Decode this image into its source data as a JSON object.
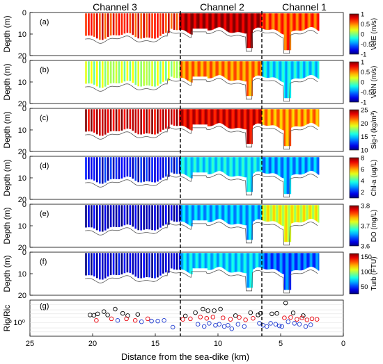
{
  "figure": {
    "channel_labels": [
      "Channel 3",
      "Channel 2",
      "Channel 1"
    ],
    "xlabel": "Distance from the sea-dike (km)",
    "x_ticks": [
      "25",
      "20",
      "15",
      "10",
      "5",
      "0"
    ]
  },
  "chart_data": [
    {
      "type": "heatmap",
      "panel": "(a)",
      "ylabel": "Depth (m)",
      "x_axis": "Distance from the sea-dike (km)",
      "xlim": [
        25,
        0
      ],
      "ylim": [
        20,
        0
      ],
      "y_ticks": [
        "0",
        "10",
        "20"
      ],
      "colorbar_label": "VelE (m/s)",
      "colorbar_ticks": [
        "1",
        "0.5",
        "0",
        "-0.5",
        "-1"
      ],
      "clim": [
        -1,
        1
      ],
      "colormap": "jet",
      "boundaries_km": [
        13,
        6.5
      ],
      "segments": [
        {
          "from_km": 20.6,
          "to_km": 13,
          "value": 0.7
        },
        {
          "from_km": 13,
          "to_km": 6.5,
          "value": 0.9
        },
        {
          "from_km": 6.5,
          "to_km": 2,
          "value": 0.6
        }
      ]
    },
    {
      "type": "heatmap",
      "panel": "(b)",
      "ylabel": "Depth (m)",
      "x_axis": "Distance from the sea-dike (km)",
      "xlim": [
        25,
        0
      ],
      "ylim": [
        20,
        0
      ],
      "y_ticks": [
        "0",
        "10",
        "20"
      ],
      "colorbar_label": "VelN (m/s)",
      "colorbar_ticks": [
        "1",
        "0.5",
        "0",
        "-0.5",
        "-1"
      ],
      "clim": [
        -1,
        1
      ],
      "colormap": "jet",
      "boundaries_km": [
        13,
        6.5
      ],
      "segments": [
        {
          "from_km": 20.6,
          "to_km": 13,
          "value": 0.1
        },
        {
          "from_km": 13,
          "to_km": 6.5,
          "value": 0.5
        },
        {
          "from_km": 6.5,
          "to_km": 2,
          "value": -0.3
        }
      ]
    },
    {
      "type": "heatmap",
      "panel": "(c)",
      "ylabel": "Depth (m)",
      "x_axis": "Distance from the sea-dike (km)",
      "xlim": [
        25,
        0
      ],
      "ylim": [
        20,
        0
      ],
      "y_ticks": [
        "0",
        "10",
        "20"
      ],
      "colorbar_label": "Sig-t (kg/m³)",
      "colorbar_ticks": [
        "25",
        "20",
        "15",
        "10"
      ],
      "clim": [
        10,
        25
      ],
      "colormap": "jet",
      "boundaries_km": [
        13,
        6.5
      ],
      "segments": [
        {
          "from_km": 20.6,
          "to_km": 13,
          "value": 24
        },
        {
          "from_km": 13,
          "to_km": 6.5,
          "value": 23.5
        },
        {
          "from_km": 6.5,
          "to_km": 2,
          "value": 21
        }
      ]
    },
    {
      "type": "heatmap",
      "panel": "(d)",
      "ylabel": "Depth (m)",
      "x_axis": "Distance from the sea-dike (km)",
      "xlim": [
        25,
        0
      ],
      "ylim": [
        20,
        0
      ],
      "y_ticks": [
        "0",
        "10",
        "20"
      ],
      "colorbar_label": "Chl-a (ug/L)",
      "colorbar_ticks": [
        "8",
        "6",
        "4",
        "2"
      ],
      "clim": [
        1,
        8
      ],
      "colormap": "jet",
      "boundaries_km": [
        13,
        6.5
      ],
      "segments": [
        {
          "from_km": 20.6,
          "to_km": 13,
          "value": 1.8
        },
        {
          "from_km": 13,
          "to_km": 6.5,
          "value": 3.5
        },
        {
          "from_km": 6.5,
          "to_km": 2,
          "value": 3
        }
      ]
    },
    {
      "type": "heatmap",
      "panel": "(e)",
      "ylabel": "Depth (m)",
      "x_axis": "Distance from the sea-dike (km)",
      "xlim": [
        25,
        0
      ],
      "ylim": [
        20,
        0
      ],
      "y_ticks": [
        "0",
        "10",
        "20"
      ],
      "colorbar_label": "DO (mg/L)",
      "colorbar_ticks": [
        "3.8",
        "3.7",
        "3.6"
      ],
      "clim": [
        3.6,
        3.8
      ],
      "colormap": "jet",
      "boundaries_km": [
        13,
        6.5
      ],
      "segments": [
        {
          "from_km": 20.6,
          "to_km": 13,
          "value": 3.61
        },
        {
          "from_km": 13,
          "to_km": 6.5,
          "value": 3.66
        },
        {
          "from_km": 6.5,
          "to_km": 2,
          "value": 3.72
        }
      ]
    },
    {
      "type": "heatmap",
      "panel": "(f)",
      "ylabel": "Depth (m)",
      "x_axis": "Distance from the sea-dike (km)",
      "xlim": [
        25,
        0
      ],
      "ylim": [
        20,
        0
      ],
      "y_ticks": [
        "0",
        "10",
        "20"
      ],
      "colorbar_label": "Turb (FTU)",
      "colorbar_ticks": [
        "150",
        "100",
        "50"
      ],
      "clim": [
        25,
        160
      ],
      "colormap": "jet",
      "boundaries_km": [
        13,
        6.5
      ],
      "segments": [
        {
          "from_km": 20.6,
          "to_km": 13,
          "value": 35
        },
        {
          "from_km": 13,
          "to_km": 6.5,
          "value": 70
        },
        {
          "from_km": 6.5,
          "to_km": 2,
          "value": 55
        }
      ]
    },
    {
      "type": "scatter",
      "panel": "(g)",
      "ylabel": "Rig/Ric",
      "y_scale": "log",
      "y_ticks": [
        "10⁰"
      ],
      "x_axis": "Distance from the sea-dike (km)",
      "xlim": [
        25,
        0
      ],
      "boundaries_km": [
        13,
        6.5
      ],
      "series": [
        {
          "color": "#000000",
          "points": [
            [
              20.2,
              2.6
            ],
            [
              19.9,
              2.5
            ],
            [
              19.6,
              3.0
            ],
            [
              19.1,
              4.0
            ],
            [
              18.8,
              2.6
            ],
            [
              18.2,
              5.5
            ],
            [
              17.6,
              3.2
            ],
            [
              17.2,
              2.4
            ],
            [
              16.4,
              2.8
            ],
            [
              12.6,
              2.3
            ],
            [
              11.8,
              3.5
            ],
            [
              11.2,
              5.5
            ],
            [
              10.8,
              4.5
            ],
            [
              10.3,
              4.5
            ],
            [
              9.8,
              5.5
            ],
            [
              8.6,
              2.4
            ],
            [
              7.4,
              3.5
            ],
            [
              6.8,
              2.6
            ],
            [
              6.6,
              3.2
            ],
            [
              5.7,
              3.0
            ],
            [
              5.3,
              3.2
            ],
            [
              4.6,
              12
            ],
            [
              4.0,
              3.4
            ],
            [
              3.2,
              2.4
            ]
          ]
        },
        {
          "color": "#e8000b",
          "points": [
            [
              19.7,
              1.3
            ],
            [
              18.5,
              1.6
            ],
            [
              17.3,
              1.6
            ],
            [
              16.6,
              1.3
            ],
            [
              15.6,
              1.6
            ],
            [
              12.8,
              1.5
            ],
            [
              12.2,
              1.6
            ],
            [
              11.4,
              2.0
            ],
            [
              10.9,
              1.7
            ],
            [
              10.4,
              2.0
            ],
            [
              9.6,
              1.8
            ],
            [
              9.0,
              1.5
            ],
            [
              8.3,
              1.9
            ],
            [
              7.8,
              1.4
            ],
            [
              7.2,
              1.7
            ],
            [
              4.7,
              1.8
            ],
            [
              4.2,
              1.9
            ],
            [
              3.7,
              1.5
            ],
            [
              3.3,
              1.8
            ],
            [
              2.9,
              1.4
            ],
            [
              2.5,
              1.6
            ],
            [
              2.1,
              1.5
            ]
          ]
        },
        {
          "color": "#1f3bd0",
          "points": [
            [
              18.0,
              1.3
            ],
            [
              16.1,
              1.1
            ],
            [
              15.3,
              1.2
            ],
            [
              14.8,
              1.2
            ],
            [
              14.3,
              1.3
            ],
            [
              13.6,
              0.55
            ],
            [
              11.6,
              0.8
            ],
            [
              11.1,
              0.6
            ],
            [
              10.7,
              0.9
            ],
            [
              10.2,
              0.7
            ],
            [
              9.9,
              0.8
            ],
            [
              9.5,
              0.6
            ],
            [
              9.2,
              0.7
            ],
            [
              8.9,
              0.45
            ],
            [
              8.4,
              0.8
            ],
            [
              7.9,
              0.6
            ],
            [
              6.7,
              0.9
            ],
            [
              6.4,
              0.7
            ],
            [
              6.1,
              0.6
            ],
            [
              5.8,
              0.9
            ],
            [
              5.4,
              0.8
            ],
            [
              5.1,
              0.65
            ],
            [
              4.9,
              0.6
            ],
            [
              4.4,
              1.1
            ],
            [
              3.9,
              0.9
            ],
            [
              3.5,
              0.8
            ],
            [
              3.0,
              0.6
            ],
            [
              2.6,
              0.75
            ]
          ]
        }
      ]
    }
  ]
}
